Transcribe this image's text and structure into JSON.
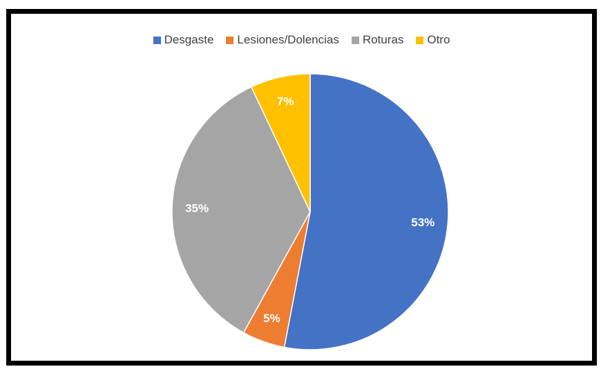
{
  "chart_data": {
    "type": "pie",
    "title": "",
    "legend_position": "top",
    "series": [
      {
        "name": "Desgaste",
        "value": 53,
        "label": "53%",
        "color": "#4472C4"
      },
      {
        "name": "Lesiones/Dolencias",
        "value": 5,
        "label": "5%",
        "color": "#ED7D31"
      },
      {
        "name": "Roturas",
        "value": 35,
        "label": "35%",
        "color": "#A5A5A5"
      },
      {
        "name": "Otro",
        "value": 7,
        "label": "7%",
        "color": "#FFC000"
      }
    ]
  }
}
